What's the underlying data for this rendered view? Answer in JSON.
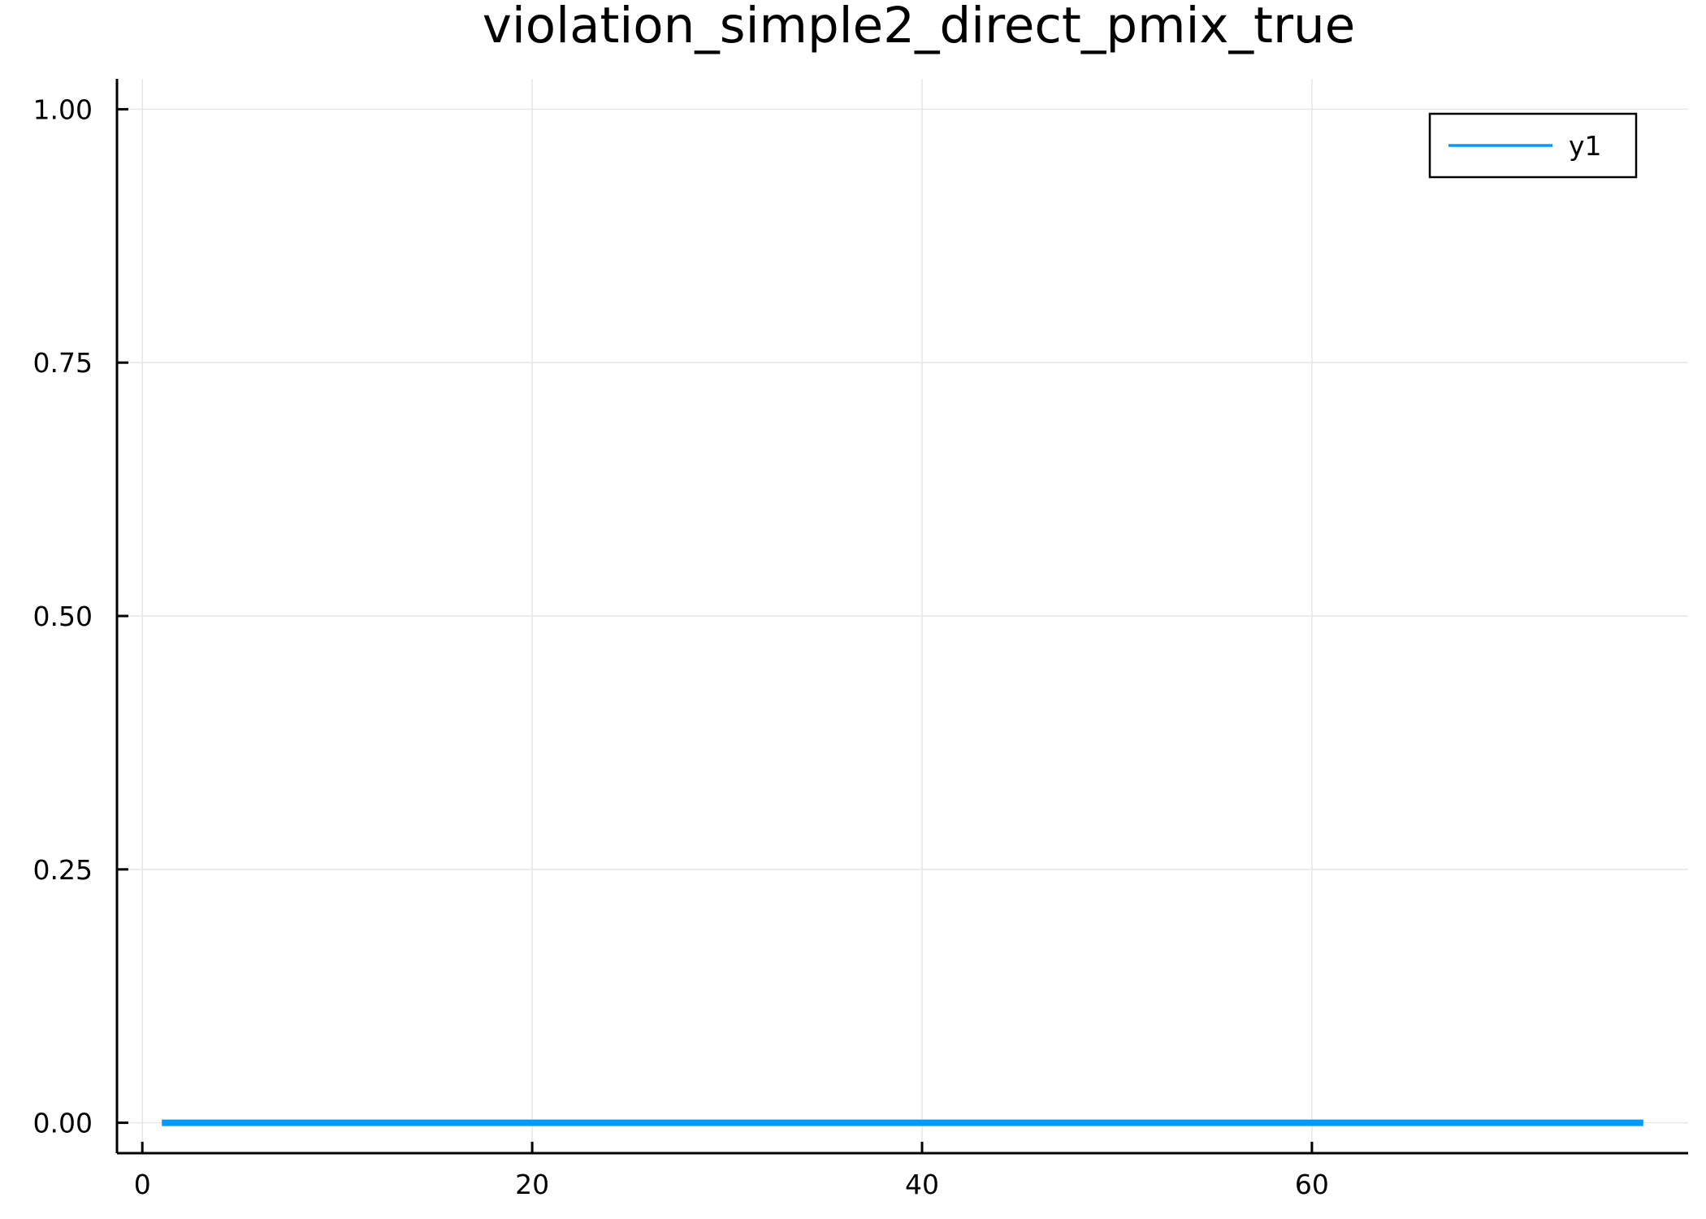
{
  "chart_data": {
    "type": "line",
    "title": "violation_simple2_direct_pmix_true",
    "xlabel": "",
    "ylabel": "",
    "xlim": [
      -1.3,
      79.3
    ],
    "ylim": [
      -0.03,
      1.03
    ],
    "x_ticks": [
      0,
      20,
      40,
      60
    ],
    "x_tick_labels": [
      "0",
      "20",
      "40",
      "60"
    ],
    "y_ticks": [
      0,
      0.25,
      0.5,
      0.75,
      1.0
    ],
    "y_tick_labels": [
      "0.00",
      "0.25",
      "0.50",
      "0.75",
      "1.00"
    ],
    "grid": true,
    "legend": {
      "position": "top-right",
      "entries": [
        "y1"
      ]
    },
    "series": [
      {
        "name": "y1",
        "color": "#009AFA",
        "x": [
          1,
          77
        ],
        "y": [
          0,
          0
        ]
      }
    ]
  }
}
